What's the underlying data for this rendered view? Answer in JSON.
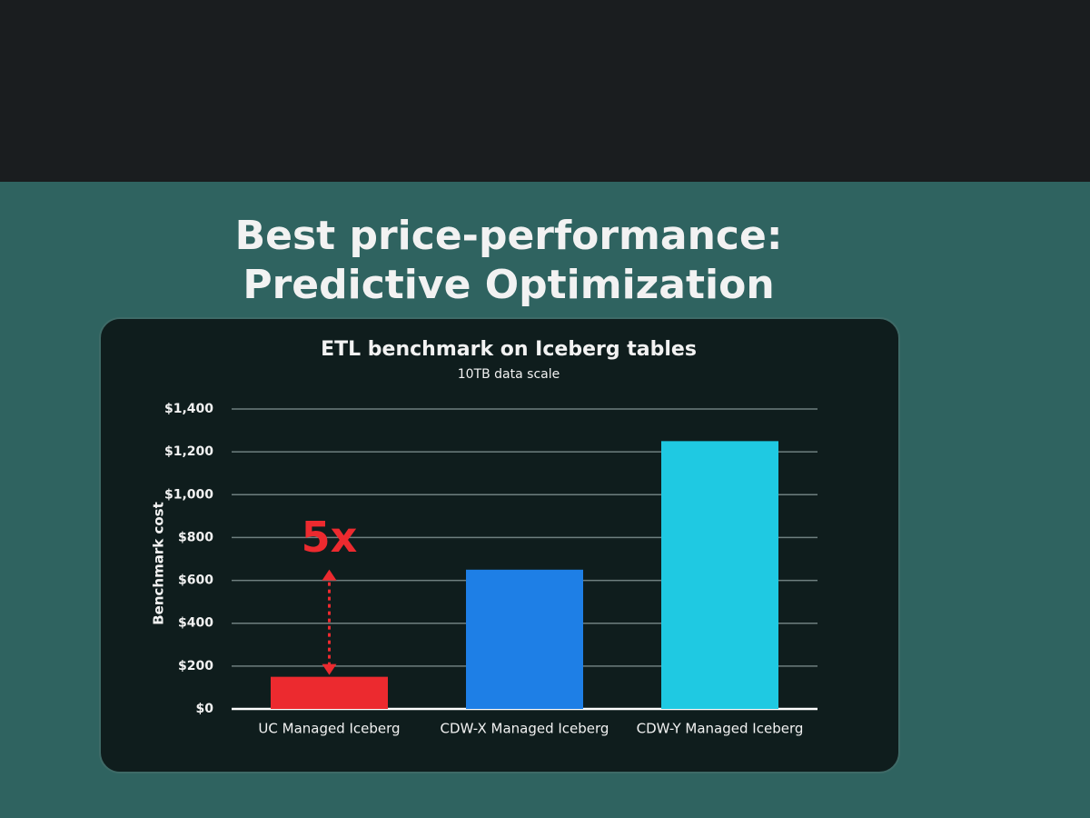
{
  "slide_title": [
    "Best price-performance:",
    "Predictive Optimization"
  ],
  "chart_data": {
    "type": "bar",
    "title": "ETL benchmark on Iceberg tables",
    "subtitle": "10TB data scale",
    "y_label": "Benchmark cost",
    "categories": [
      "UC Managed Iceberg",
      "CDW-X Managed Iceberg",
      "CDW-Y Managed Iceberg"
    ],
    "values": [
      150,
      650,
      1250
    ],
    "colors": [
      "#ec2a2f",
      "#1e7fe6",
      "#1fc9e2"
    ],
    "annotation": "5x",
    "annotation_color": "#ec2a2f",
    "ylim": [
      0,
      1400
    ],
    "yticks": [
      {
        "value": 0,
        "label": "$0"
      },
      {
        "value": 200,
        "label": "$200"
      },
      {
        "value": 400,
        "label": "$400"
      },
      {
        "value": 600,
        "label": "$600"
      },
      {
        "value": 800,
        "label": "$800"
      },
      {
        "value": 1000,
        "label": "$1,000"
      },
      {
        "value": 1200,
        "label": "$1,200"
      },
      {
        "value": 1400,
        "label": "$1,400"
      }
    ],
    "grid": true
  }
}
